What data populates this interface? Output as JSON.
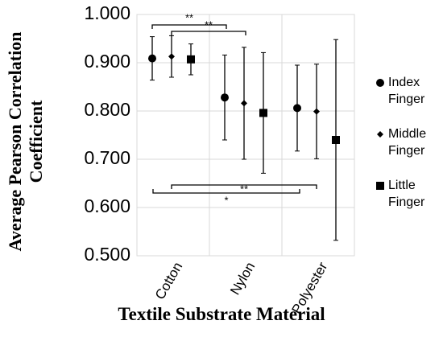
{
  "chart_data": {
    "type": "errorbar-dot",
    "y_label": "Average Pearson Correlation Coefficient",
    "x_label": "Textile Substrate Material",
    "categories": [
      "Cotton",
      "Nylon",
      "Polyester"
    ],
    "ylim": [
      0.5,
      1.0
    ],
    "yticks": [
      {
        "value": 0.5,
        "label": "0.500"
      },
      {
        "value": 0.6,
        "label": "0.600"
      },
      {
        "value": 0.7,
        "label": "0.700"
      },
      {
        "value": 0.8,
        "label": "0.800"
      },
      {
        "value": 0.9,
        "label": "0.900"
      },
      {
        "value": 1.0,
        "label": "1.000"
      }
    ],
    "grid": true,
    "legend": "right",
    "series": [
      {
        "name": "Index Finger",
        "color": "#000000",
        "marker": "circle",
        "values": [
          0.909,
          0.828,
          0.806
        ],
        "errors": [
          0.045,
          0.088,
          0.089
        ]
      },
      {
        "name": "Middle Finger",
        "color": "#000000",
        "marker": "diamond",
        "values": [
          0.913,
          0.816,
          0.799
        ],
        "errors": [
          0.043,
          0.116,
          0.098
        ]
      },
      {
        "name": "Little Finger",
        "color": "#000000",
        "marker": "square",
        "values": [
          0.907,
          0.796,
          0.74
        ],
        "errors": [
          0.032,
          0.125,
          0.208
        ]
      }
    ],
    "annotations": [
      "**",
      "**",
      "**",
      "*"
    ]
  }
}
